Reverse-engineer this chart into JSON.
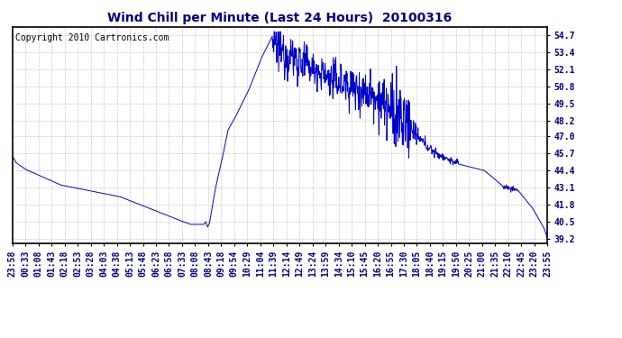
{
  "title": "Wind Chill per Minute (Last 24 Hours)  20100316",
  "copyright": "Copyright 2010 Cartronics.com",
  "line_color": "#0000cc",
  "background_color": "#ffffff",
  "grid_color": "#bbbbbb",
  "yticks": [
    39.2,
    40.5,
    41.8,
    43.1,
    44.4,
    45.7,
    47.0,
    48.2,
    49.5,
    50.8,
    52.1,
    53.4,
    54.7
  ],
  "ylim": [
    38.85,
    55.35
  ],
  "x_labels": [
    "23:58",
    "00:33",
    "01:08",
    "01:43",
    "02:18",
    "02:53",
    "03:28",
    "04:03",
    "04:38",
    "05:13",
    "05:48",
    "06:23",
    "06:58",
    "07:33",
    "08:08",
    "08:43",
    "09:18",
    "09:54",
    "10:29",
    "11:04",
    "11:39",
    "12:14",
    "12:49",
    "13:24",
    "13:59",
    "14:34",
    "15:10",
    "15:45",
    "16:20",
    "16:55",
    "17:30",
    "18:05",
    "18:40",
    "19:15",
    "19:50",
    "20:25",
    "21:00",
    "21:35",
    "22:10",
    "22:45",
    "23:20",
    "23:55"
  ],
  "title_fontsize": 10,
  "tick_fontsize": 7,
  "copyright_fontsize": 7
}
